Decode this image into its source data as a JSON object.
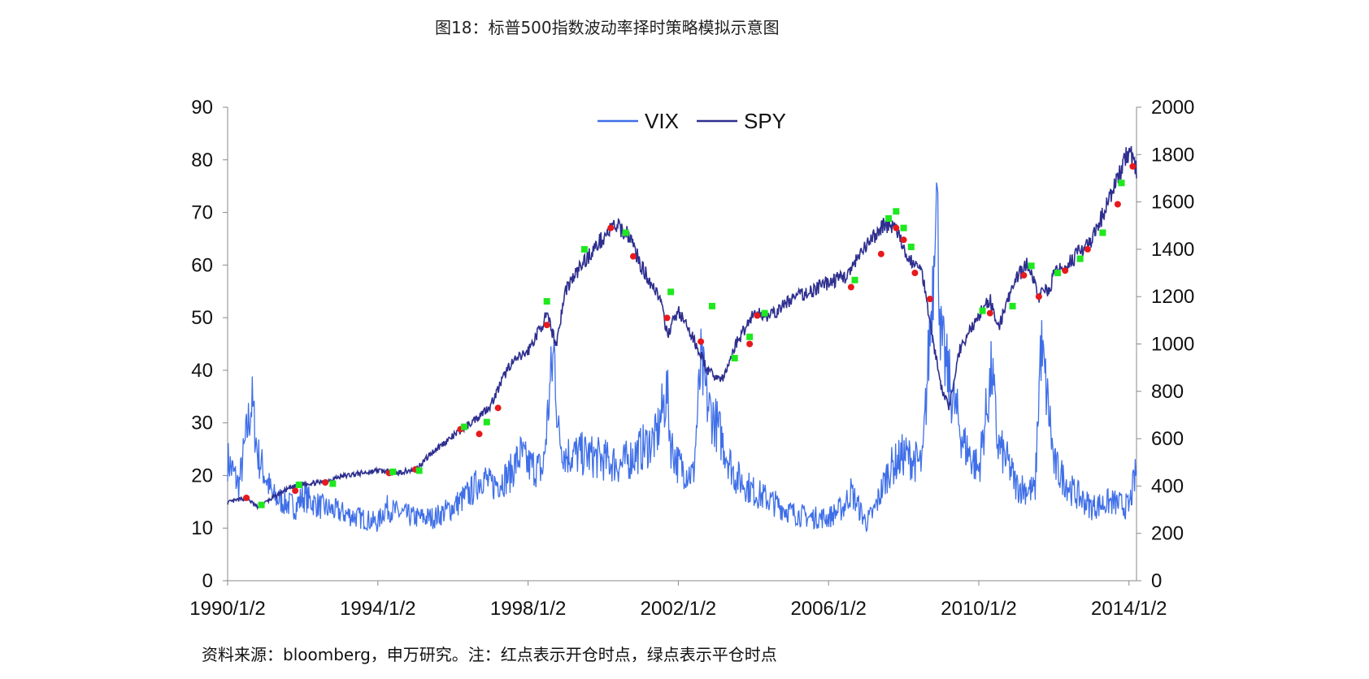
{
  "title": "图18：标普500指数波动率择时策略模拟示意图",
  "source_note": "资料来源：bloomberg，申万研究。注：红点表示开仓时点，绿点表示平仓时点",
  "colors": {
    "vix": "#3f6fe8",
    "spy": "#2e2f8f",
    "open_marker": "#e8191c",
    "close_marker": "#1ee81e",
    "axis": "#8a8a8a"
  },
  "chart_data": {
    "type": "line",
    "title": "",
    "x_start_label": "1990/1/2",
    "x_tick_labels": [
      "1990/1/2",
      "1994/1/2",
      "1998/1/2",
      "2002/1/2",
      "2006/1/2",
      "2010/1/2",
      "2014/1/2"
    ],
    "y_left_ticks": [
      "0",
      "10",
      "20",
      "30",
      "40",
      "50",
      "60",
      "70",
      "80",
      "90"
    ],
    "y_right_ticks": [
      "0",
      "200",
      "400",
      "600",
      "800",
      "1000",
      "1200",
      "1400",
      "1600",
      "1800",
      "2000"
    ],
    "y_left_lim": [
      0,
      90
    ],
    "y_right_lim": [
      0,
      2000
    ],
    "x_lim": [
      1990.0,
      2014.2
    ],
    "legend": {
      "placement": "top-center",
      "entries": [
        "VIX",
        "SPY"
      ]
    },
    "series": [
      {
        "name": "VIX",
        "axis": "left",
        "x": [
          1990.0,
          1990.3,
          1990.55,
          1990.65,
          1990.8,
          1991.0,
          1991.2,
          1991.5,
          1991.8,
          1992.0,
          1992.5,
          1993.0,
          1993.5,
          1994.0,
          1994.2,
          1994.5,
          1995.0,
          1995.5,
          1996.0,
          1996.5,
          1996.8,
          1997.0,
          1997.5,
          1997.8,
          1998.0,
          1998.4,
          1998.6,
          1998.7,
          1998.8,
          1999.0,
          1999.5,
          2000.0,
          2000.5,
          2001.0,
          2001.4,
          2001.7,
          2001.8,
          2002.0,
          2002.4,
          2002.6,
          2002.8,
          2003.0,
          2003.2,
          2003.5,
          2004.0,
          2004.5,
          2005.0,
          2005.5,
          2006.0,
          2006.4,
          2006.6,
          2007.0,
          2007.2,
          2007.6,
          2008.0,
          2008.5,
          2008.8,
          2008.85,
          2009.0,
          2009.3,
          2009.6,
          2010.0,
          2010.35,
          2010.5,
          2010.8,
          2011.0,
          2011.5,
          2011.65,
          2011.9,
          2012.0,
          2012.5,
          2013.0,
          2013.5,
          2014.0,
          2014.2
        ],
        "values": [
          23,
          18,
          30,
          34,
          24,
          20,
          16,
          15,
          14,
          16,
          14,
          13,
          12,
          11,
          14,
          13,
          12,
          12,
          14,
          17,
          20,
          18,
          20,
          24,
          22,
          21,
          38,
          44,
          28,
          24,
          24,
          23,
          22,
          25,
          27,
          36,
          26,
          22,
          20,
          41,
          33,
          30,
          26,
          20,
          17,
          15,
          13,
          12,
          12,
          14,
          17,
          11,
          13,
          21,
          24,
          22,
          60,
          80,
          45,
          35,
          26,
          21,
          40,
          26,
          22,
          18,
          17,
          45,
          30,
          22,
          17,
          14,
          15,
          14,
          21
        ]
      },
      {
        "name": "SPY",
        "axis": "right",
        "x": [
          1990.0,
          1990.5,
          1990.8,
          1991.0,
          1991.5,
          1992.0,
          1992.5,
          1993.0,
          1994.0,
          1994.5,
          1995.0,
          1995.5,
          1996.0,
          1996.5,
          1997.0,
          1997.5,
          1998.0,
          1998.5,
          1998.75,
          1999.0,
          1999.5,
          2000.0,
          2000.3,
          2000.7,
          2001.0,
          2001.5,
          2001.7,
          2002.0,
          2002.5,
          2002.8,
          2003.2,
          2003.5,
          2004.0,
          2004.5,
          2005.0,
          2005.5,
          2006.0,
          2006.5,
          2007.0,
          2007.5,
          2007.8,
          2008.0,
          2008.5,
          2008.8,
          2009.0,
          2009.2,
          2009.5,
          2010.0,
          2010.3,
          2010.5,
          2011.0,
          2011.3,
          2011.6,
          2011.9,
          2012.0,
          2012.5,
          2013.0,
          2013.5,
          2014.0,
          2014.2
        ],
        "values": [
          330,
          350,
          310,
          330,
          380,
          410,
          415,
          440,
          465,
          455,
          470,
          550,
          610,
          670,
          740,
          910,
          970,
          1120,
          1000,
          1230,
          1350,
          1450,
          1500,
          1460,
          1330,
          1200,
          1040,
          1140,
          990,
          880,
          850,
          990,
          1130,
          1120,
          1190,
          1220,
          1260,
          1290,
          1410,
          1510,
          1490,
          1390,
          1300,
          1000,
          820,
          730,
          980,
          1120,
          1190,
          1060,
          1280,
          1340,
          1200,
          1240,
          1290,
          1360,
          1430,
          1620,
          1820,
          1740
        ]
      }
    ],
    "markers": {
      "open_points_red": [
        [
          1990.5,
          350
        ],
        [
          1991.8,
          380
        ],
        [
          1992.6,
          415
        ],
        [
          1994.3,
          455
        ],
        [
          1995.0,
          470
        ],
        [
          1996.2,
          640
        ],
        [
          1996.7,
          620
        ],
        [
          1997.2,
          730
        ],
        [
          1998.5,
          1080
        ],
        [
          2000.2,
          1490
        ],
        [
          2000.8,
          1370
        ],
        [
          2001.7,
          1110
        ],
        [
          2002.6,
          1010
        ],
        [
          2003.9,
          1000
        ],
        [
          2004.1,
          1120
        ],
        [
          2006.6,
          1240
        ],
        [
          2007.4,
          1380
        ],
        [
          2007.8,
          1490
        ],
        [
          2008.0,
          1440
        ],
        [
          2008.3,
          1300
        ],
        [
          2008.7,
          1190
        ],
        [
          2010.3,
          1130
        ],
        [
          2011.2,
          1290
        ],
        [
          2011.6,
          1200
        ],
        [
          2012.3,
          1310
        ],
        [
          2012.9,
          1400
        ],
        [
          2013.7,
          1590
        ],
        [
          2014.1,
          1750
        ]
      ],
      "close_points_green": [
        [
          1990.9,
          320
        ],
        [
          1991.9,
          405
        ],
        [
          1992.8,
          410
        ],
        [
          1994.4,
          460
        ],
        [
          1995.1,
          465
        ],
        [
          1996.3,
          650
        ],
        [
          1996.9,
          670
        ],
        [
          1998.5,
          1180
        ],
        [
          1999.5,
          1400
        ],
        [
          2000.6,
          1470
        ],
        [
          2001.8,
          1220
        ],
        [
          2002.9,
          1160
        ],
        [
          2003.5,
          940
        ],
        [
          2003.9,
          1030
        ],
        [
          2004.3,
          1130
        ],
        [
          2006.7,
          1270
        ],
        [
          2007.6,
          1530
        ],
        [
          2007.8,
          1560
        ],
        [
          2008.0,
          1490
        ],
        [
          2008.2,
          1410
        ],
        [
          2010.1,
          1140
        ],
        [
          2010.9,
          1160
        ],
        [
          2011.4,
          1330
        ],
        [
          2012.1,
          1300
        ],
        [
          2012.7,
          1360
        ],
        [
          2013.3,
          1470
        ],
        [
          2013.8,
          1680
        ]
      ]
    }
  }
}
